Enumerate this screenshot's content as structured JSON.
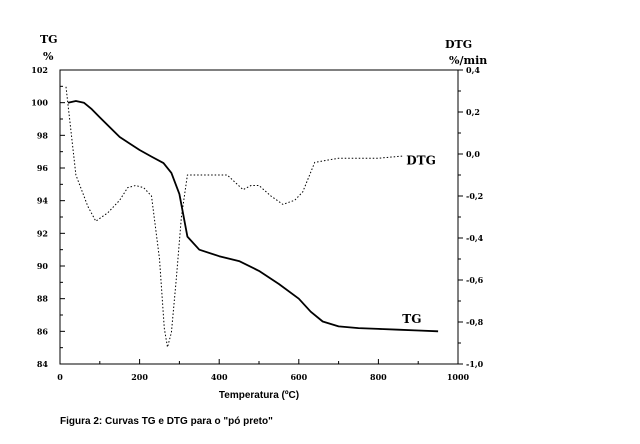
{
  "chart_data": {
    "type": "line",
    "xlabel": "Temperatura (ºC)",
    "xlim": [
      0,
      1000
    ],
    "x_ticks": [
      0,
      200,
      400,
      600,
      800,
      1000
    ],
    "y_left": {
      "label_line1": "TG",
      "label_line2": "%",
      "lim": [
        84,
        102
      ],
      "ticks": [
        84,
        86,
        88,
        90,
        92,
        94,
        96,
        98,
        100,
        102
      ]
    },
    "y_right": {
      "label_line1": "DTG",
      "label_line2": "%/min",
      "lim": [
        -1.0,
        0.4
      ],
      "ticks": [
        -1.0,
        -0.8,
        -0.6,
        -0.4,
        -0.2,
        0.0,
        0.2,
        0.4
      ],
      "tick_labels": [
        "-1,0",
        "-0,8",
        "-0,6",
        "-0,4",
        "-0,2",
        "0,0",
        "0,2",
        "0,4"
      ]
    },
    "series": [
      {
        "name": "TG",
        "axis": "left",
        "style": "solid",
        "x": [
          20,
          40,
          60,
          80,
          100,
          150,
          200,
          230,
          260,
          280,
          300,
          320,
          350,
          400,
          450,
          500,
          550,
          600,
          630,
          660,
          700,
          750,
          800,
          850,
          900,
          950
        ],
        "y": [
          100.0,
          100.1,
          100.0,
          99.6,
          99.1,
          97.9,
          97.1,
          96.7,
          96.3,
          95.7,
          94.4,
          91.8,
          91.0,
          90.6,
          90.3,
          89.7,
          88.9,
          88.0,
          87.2,
          86.6,
          86.3,
          86.2,
          86.15,
          86.1,
          86.05,
          86.0
        ]
      },
      {
        "name": "DTG",
        "axis": "right",
        "style": "dotted",
        "x": [
          15,
          40,
          70,
          90,
          120,
          150,
          170,
          190,
          210,
          230,
          250,
          262,
          270,
          280,
          292,
          305,
          320,
          360,
          420,
          460,
          480,
          500,
          530,
          560,
          590,
          610,
          640,
          700,
          760,
          800,
          860
        ],
        "y": [
          0.32,
          -0.1,
          -0.25,
          -0.32,
          -0.28,
          -0.22,
          -0.16,
          -0.15,
          -0.16,
          -0.2,
          -0.5,
          -0.83,
          -0.92,
          -0.85,
          -0.6,
          -0.3,
          -0.1,
          -0.1,
          -0.1,
          -0.17,
          -0.15,
          -0.15,
          -0.2,
          -0.24,
          -0.22,
          -0.18,
          -0.04,
          -0.02,
          -0.02,
          -0.02,
          -0.01
        ]
      }
    ],
    "annotations": [
      {
        "text": "DTG",
        "x": 870,
        "y_axis": "right",
        "y": -0.05
      },
      {
        "text": "TG",
        "x": 860,
        "y_axis": "left",
        "y": 86.5
      }
    ],
    "grid": false,
    "legend": "none"
  },
  "caption": "Figura 2: Curvas TG e DTG para o \"pó preto\""
}
